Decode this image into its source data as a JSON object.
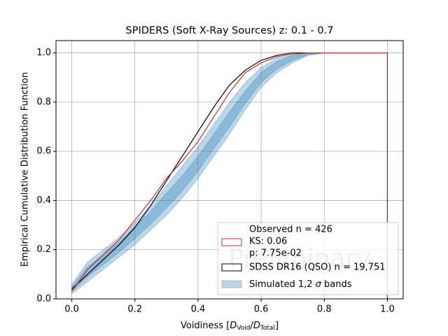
{
  "chart_data": {
    "type": "ecdf",
    "title": "SPIDERS (Soft X-Ray Sources) z: 0.1 - 0.7",
    "ylabel": "Empirical Cumulative Distribution Function",
    "xlabel_parts": [
      "Voidiness [",
      "D",
      "Void",
      "/",
      "D",
      "Total",
      "]"
    ],
    "watermark": "Preliminary",
    "xlim": [
      -0.05,
      1.05
    ],
    "ylim": [
      0,
      1.05
    ],
    "xticks": [
      {
        "value": 0,
        "label": "0.0"
      },
      {
        "value": 0.2,
        "label": "0.2"
      },
      {
        "value": 0.4,
        "label": "0.4"
      },
      {
        "value": 0.6,
        "label": "0.6"
      },
      {
        "value": 0.8,
        "label": "0.8"
      },
      {
        "value": 1,
        "label": "1.0"
      }
    ],
    "yticks": [
      {
        "value": 0,
        "label": "0.0"
      },
      {
        "value": 0.2,
        "label": "0.2"
      },
      {
        "value": 0.4,
        "label": "0.4"
      },
      {
        "value": 0.6,
        "label": "0.6"
      },
      {
        "value": 0.8,
        "label": "0.8"
      },
      {
        "value": 1,
        "label": "1.0"
      }
    ],
    "grid": true,
    "legend_position": "lower right",
    "bands": {
      "name_parts": [
        "Simulated 1,2 ",
        "σ",
        " bands"
      ],
      "color": "#1f77b4",
      "x": [
        0,
        0.05,
        0.1,
        0.15,
        0.2,
        0.25,
        0.3,
        0.35,
        0.4,
        0.45,
        0.5,
        0.55,
        0.6,
        0.65,
        0.7,
        0.75,
        0.8,
        0.85,
        0.9,
        0.95,
        1
      ],
      "levels": [
        {
          "lower": [
            0.02,
            0.07,
            0.12,
            0.17,
            0.22,
            0.28,
            0.34,
            0.41,
            0.49,
            0.58,
            0.67,
            0.77,
            0.86,
            0.92,
            0.96,
            0.99,
            1,
            1,
            1,
            1,
            1
          ],
          "upper": [
            0.06,
            0.15,
            0.2,
            0.25,
            0.31,
            0.38,
            0.46,
            0.54,
            0.62,
            0.71,
            0.8,
            0.88,
            0.94,
            0.98,
            0.99,
            1,
            1,
            1,
            1,
            1,
            1
          ]
        },
        {
          "lower": [
            0.03,
            0.09,
            0.14,
            0.19,
            0.245,
            0.305,
            0.37,
            0.44,
            0.52,
            0.61,
            0.7,
            0.795,
            0.88,
            0.935,
            0.97,
            0.993,
            1,
            1,
            1,
            1,
            1
          ],
          "upper": [
            0.05,
            0.13,
            0.18,
            0.23,
            0.295,
            0.355,
            0.43,
            0.5,
            0.58,
            0.67,
            0.76,
            0.845,
            0.92,
            0.965,
            0.99,
            0.997,
            1,
            1,
            1,
            1,
            1
          ]
        }
      ]
    },
    "series": [
      {
        "name": "SDSS DR16 (QSO) n = 19,751",
        "color": "#000000",
        "x": [
          0,
          0.05,
          0.1,
          0.15,
          0.2,
          0.25,
          0.3,
          0.35,
          0.4,
          0.45,
          0.5,
          0.55,
          0.6,
          0.65,
          0.7,
          0.75,
          0.8,
          1,
          1
        ],
        "values": [
          0.04,
          0.1,
          0.16,
          0.22,
          0.29,
          0.38,
          0.48,
          0.58,
          0.68,
          0.78,
          0.87,
          0.93,
          0.97,
          0.99,
          1,
          1,
          1,
          1,
          0
        ]
      },
      {
        "name_lines": [
          "Observed n = 426",
          "KS: 0.06",
          "p: 7.75e-02"
        ],
        "color": "#d62728",
        "x": [
          0,
          0.05,
          0.1,
          0.15,
          0.2,
          0.25,
          0.3,
          0.35,
          0.4,
          0.45,
          0.5,
          0.55,
          0.6,
          0.65,
          0.7,
          0.75,
          0.8,
          1,
          1
        ],
        "values": [
          0.03,
          0.12,
          0.18,
          0.24,
          0.32,
          0.4,
          0.49,
          0.56,
          0.64,
          0.74,
          0.84,
          0.92,
          0.96,
          0.985,
          0.995,
          1,
          1,
          1,
          0
        ]
      }
    ]
  }
}
